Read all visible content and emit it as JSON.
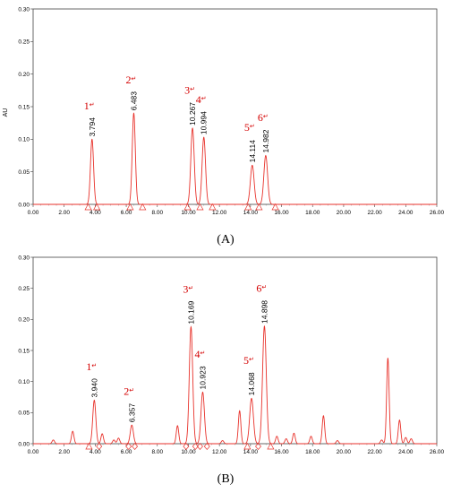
{
  "chart_data": [
    {
      "type": "line",
      "panel": "(A)",
      "ylabel": "AU",
      "xlim": [
        0,
        26
      ],
      "ylim": [
        0,
        0.3
      ],
      "x_ticks": [
        "0.00",
        "2.00",
        "4.00",
        "6.00",
        "8.00",
        "10.00",
        "12.00",
        "14.00",
        "16.00",
        "18.00",
        "20.00",
        "22.00",
        "24.00",
        "26.00"
      ],
      "y_ticks": [
        "0.00",
        "0.05",
        "0.10",
        "0.15",
        "0.20",
        "0.25",
        "0.30"
      ],
      "series": [
        {
          "color": "#e8322b",
          "baseline": 0.0
        }
      ],
      "peaks": [
        {
          "num": "1",
          "rt": 3.794,
          "label": "3.794",
          "height": 0.1,
          "width": 0.1
        },
        {
          "num": "2",
          "rt": 6.483,
          "label": "6.483",
          "height": 0.14,
          "width": 0.1
        },
        {
          "num": "3",
          "rt": 10.267,
          "label": "10.267",
          "height": 0.117,
          "width": 0.11
        },
        {
          "num": "4",
          "rt": 10.994,
          "label": "10.994",
          "height": 0.103,
          "width": 0.11
        },
        {
          "num": "5",
          "rt": 14.114,
          "label": "14.114",
          "height": 0.06,
          "width": 0.12
        },
        {
          "num": "6",
          "rt": 14.982,
          "label": "14.982",
          "height": 0.075,
          "width": 0.12
        }
      ],
      "markers": [
        {
          "shape": "triangle",
          "x": 3.55
        },
        {
          "shape": "triangle",
          "x": 4.1
        },
        {
          "shape": "triangle",
          "x": 6.25
        },
        {
          "shape": "triangle",
          "x": 7.05
        },
        {
          "shape": "triangle",
          "x": 9.95
        },
        {
          "shape": "triangle",
          "x": 10.75
        },
        {
          "shape": "triangle",
          "x": 11.55
        },
        {
          "shape": "triangle",
          "x": 13.85
        },
        {
          "shape": "triangle",
          "x": 14.55
        },
        {
          "shape": "triangle",
          "x": 15.6
        }
      ]
    },
    {
      "type": "line",
      "panel": "(B)",
      "ylabel": "",
      "xlim": [
        0,
        26
      ],
      "ylim": [
        0,
        0.3
      ],
      "x_ticks": [
        "0.00",
        "2.00",
        "4.00",
        "6.00",
        "8.00",
        "10.00",
        "12.00",
        "14.00",
        "16.00",
        "18.00",
        "20.00",
        "22.00",
        "24.00",
        "26.00"
      ],
      "y_ticks": [
        "0.00",
        "0.05",
        "0.10",
        "0.15",
        "0.20",
        "0.25",
        "0.30"
      ],
      "series": [
        {
          "color": "#e8322b",
          "baseline": 0.0
        }
      ],
      "peaks": [
        {
          "num": "1",
          "rt": 3.94,
          "label": "3.940",
          "height": 0.07,
          "width": 0.1
        },
        {
          "num": "2",
          "rt": 6.357,
          "label": "6.357",
          "height": 0.03,
          "width": 0.1
        },
        {
          "num": "3",
          "rt": 10.169,
          "label": "10.169",
          "height": 0.188,
          "width": 0.11
        },
        {
          "num": "4",
          "rt": 10.923,
          "label": "10.923",
          "height": 0.083,
          "width": 0.11
        },
        {
          "num": "5",
          "rt": 14.068,
          "label": "14.068",
          "height": 0.073,
          "width": 0.12
        },
        {
          "num": "6",
          "rt": 14.898,
          "label": "14.898",
          "height": 0.189,
          "width": 0.12
        }
      ],
      "extra_peaks": [
        {
          "rt": 1.3,
          "height": 0.006
        },
        {
          "rt": 2.55,
          "height": 0.02
        },
        {
          "rt": 4.45,
          "height": 0.016
        },
        {
          "rt": 5.2,
          "height": 0.006
        },
        {
          "rt": 5.5,
          "height": 0.009
        },
        {
          "rt": 9.3,
          "height": 0.029
        },
        {
          "rt": 12.2,
          "height": 0.005
        },
        {
          "rt": 13.3,
          "height": 0.053
        },
        {
          "rt": 15.7,
          "height": 0.012
        },
        {
          "rt": 16.3,
          "height": 0.008
        },
        {
          "rt": 16.8,
          "height": 0.017
        },
        {
          "rt": 17.9,
          "height": 0.012
        },
        {
          "rt": 18.7,
          "height": 0.045
        },
        {
          "rt": 19.6,
          "height": 0.005
        },
        {
          "rt": 22.45,
          "height": 0.006
        },
        {
          "rt": 22.85,
          "height": 0.138
        },
        {
          "rt": 23.6,
          "height": 0.038
        },
        {
          "rt": 24.0,
          "height": 0.01
        },
        {
          "rt": 24.35,
          "height": 0.008
        }
      ],
      "markers": [
        {
          "shape": "triangle",
          "x": 3.6
        },
        {
          "shape": "diamond",
          "x": 4.25
        },
        {
          "shape": "diamond",
          "x": 6.15
        },
        {
          "shape": "diamond",
          "x": 6.55
        },
        {
          "shape": "diamond",
          "x": 9.85
        },
        {
          "shape": "diamond",
          "x": 10.45
        },
        {
          "shape": "diamond",
          "x": 10.75
        },
        {
          "shape": "diamond",
          "x": 11.2
        },
        {
          "shape": "triangle",
          "x": 13.8
        },
        {
          "shape": "diamond",
          "x": 14.5
        },
        {
          "shape": "triangle",
          "x": 15.3
        }
      ]
    }
  ],
  "captions": [
    "(A)",
    "(B)"
  ],
  "peak_mark": "↵"
}
